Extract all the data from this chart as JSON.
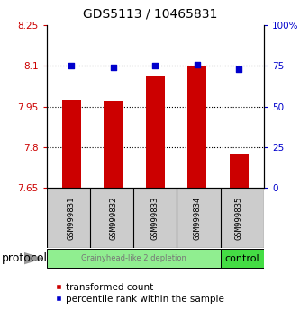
{
  "title": "GDS5113 / 10465831",
  "samples": [
    "GSM999831",
    "GSM999832",
    "GSM999833",
    "GSM999834",
    "GSM999835"
  ],
  "transformed_counts": [
    7.975,
    7.972,
    8.06,
    8.1,
    7.775
  ],
  "percentile_ranks": [
    75,
    74,
    75,
    76,
    73
  ],
  "ylim_left": [
    7.65,
    8.25
  ],
  "ylim_right": [
    0,
    100
  ],
  "yticks_left": [
    7.65,
    7.8,
    7.95,
    8.1,
    8.25
  ],
  "ytick_labels_left": [
    "7.65",
    "7.8",
    "7.95",
    "8.1",
    "8.25"
  ],
  "yticks_right": [
    0,
    25,
    50,
    75,
    100
  ],
  "ytick_labels_right": [
    "0",
    "25",
    "50",
    "75",
    "100%"
  ],
  "hlines": [
    7.8,
    7.95,
    8.1
  ],
  "bar_color": "#cc0000",
  "dot_color": "#0000cc",
  "bar_bottom": 7.65,
  "group0_count": 4,
  "group0_label": "Grainyhead-like 2 depletion",
  "group0_color": "#90ee90",
  "group0_text_color": "#777777",
  "group1_label": "control",
  "group1_color": "#44dd44",
  "group1_text_color": "#000000",
  "protocol_label": "protocol",
  "legend_bar_label": "transformed count",
  "legend_dot_label": "percentile rank within the sample",
  "left_tick_color": "#cc0000",
  "right_tick_color": "#0000cc",
  "title_fontsize": 10,
  "tick_fontsize": 7.5,
  "sample_fontsize": 6.5,
  "group_fontsize0": 6,
  "group_fontsize1": 8,
  "legend_fontsize": 7.5,
  "protocol_fontsize": 9,
  "bar_width": 0.45
}
